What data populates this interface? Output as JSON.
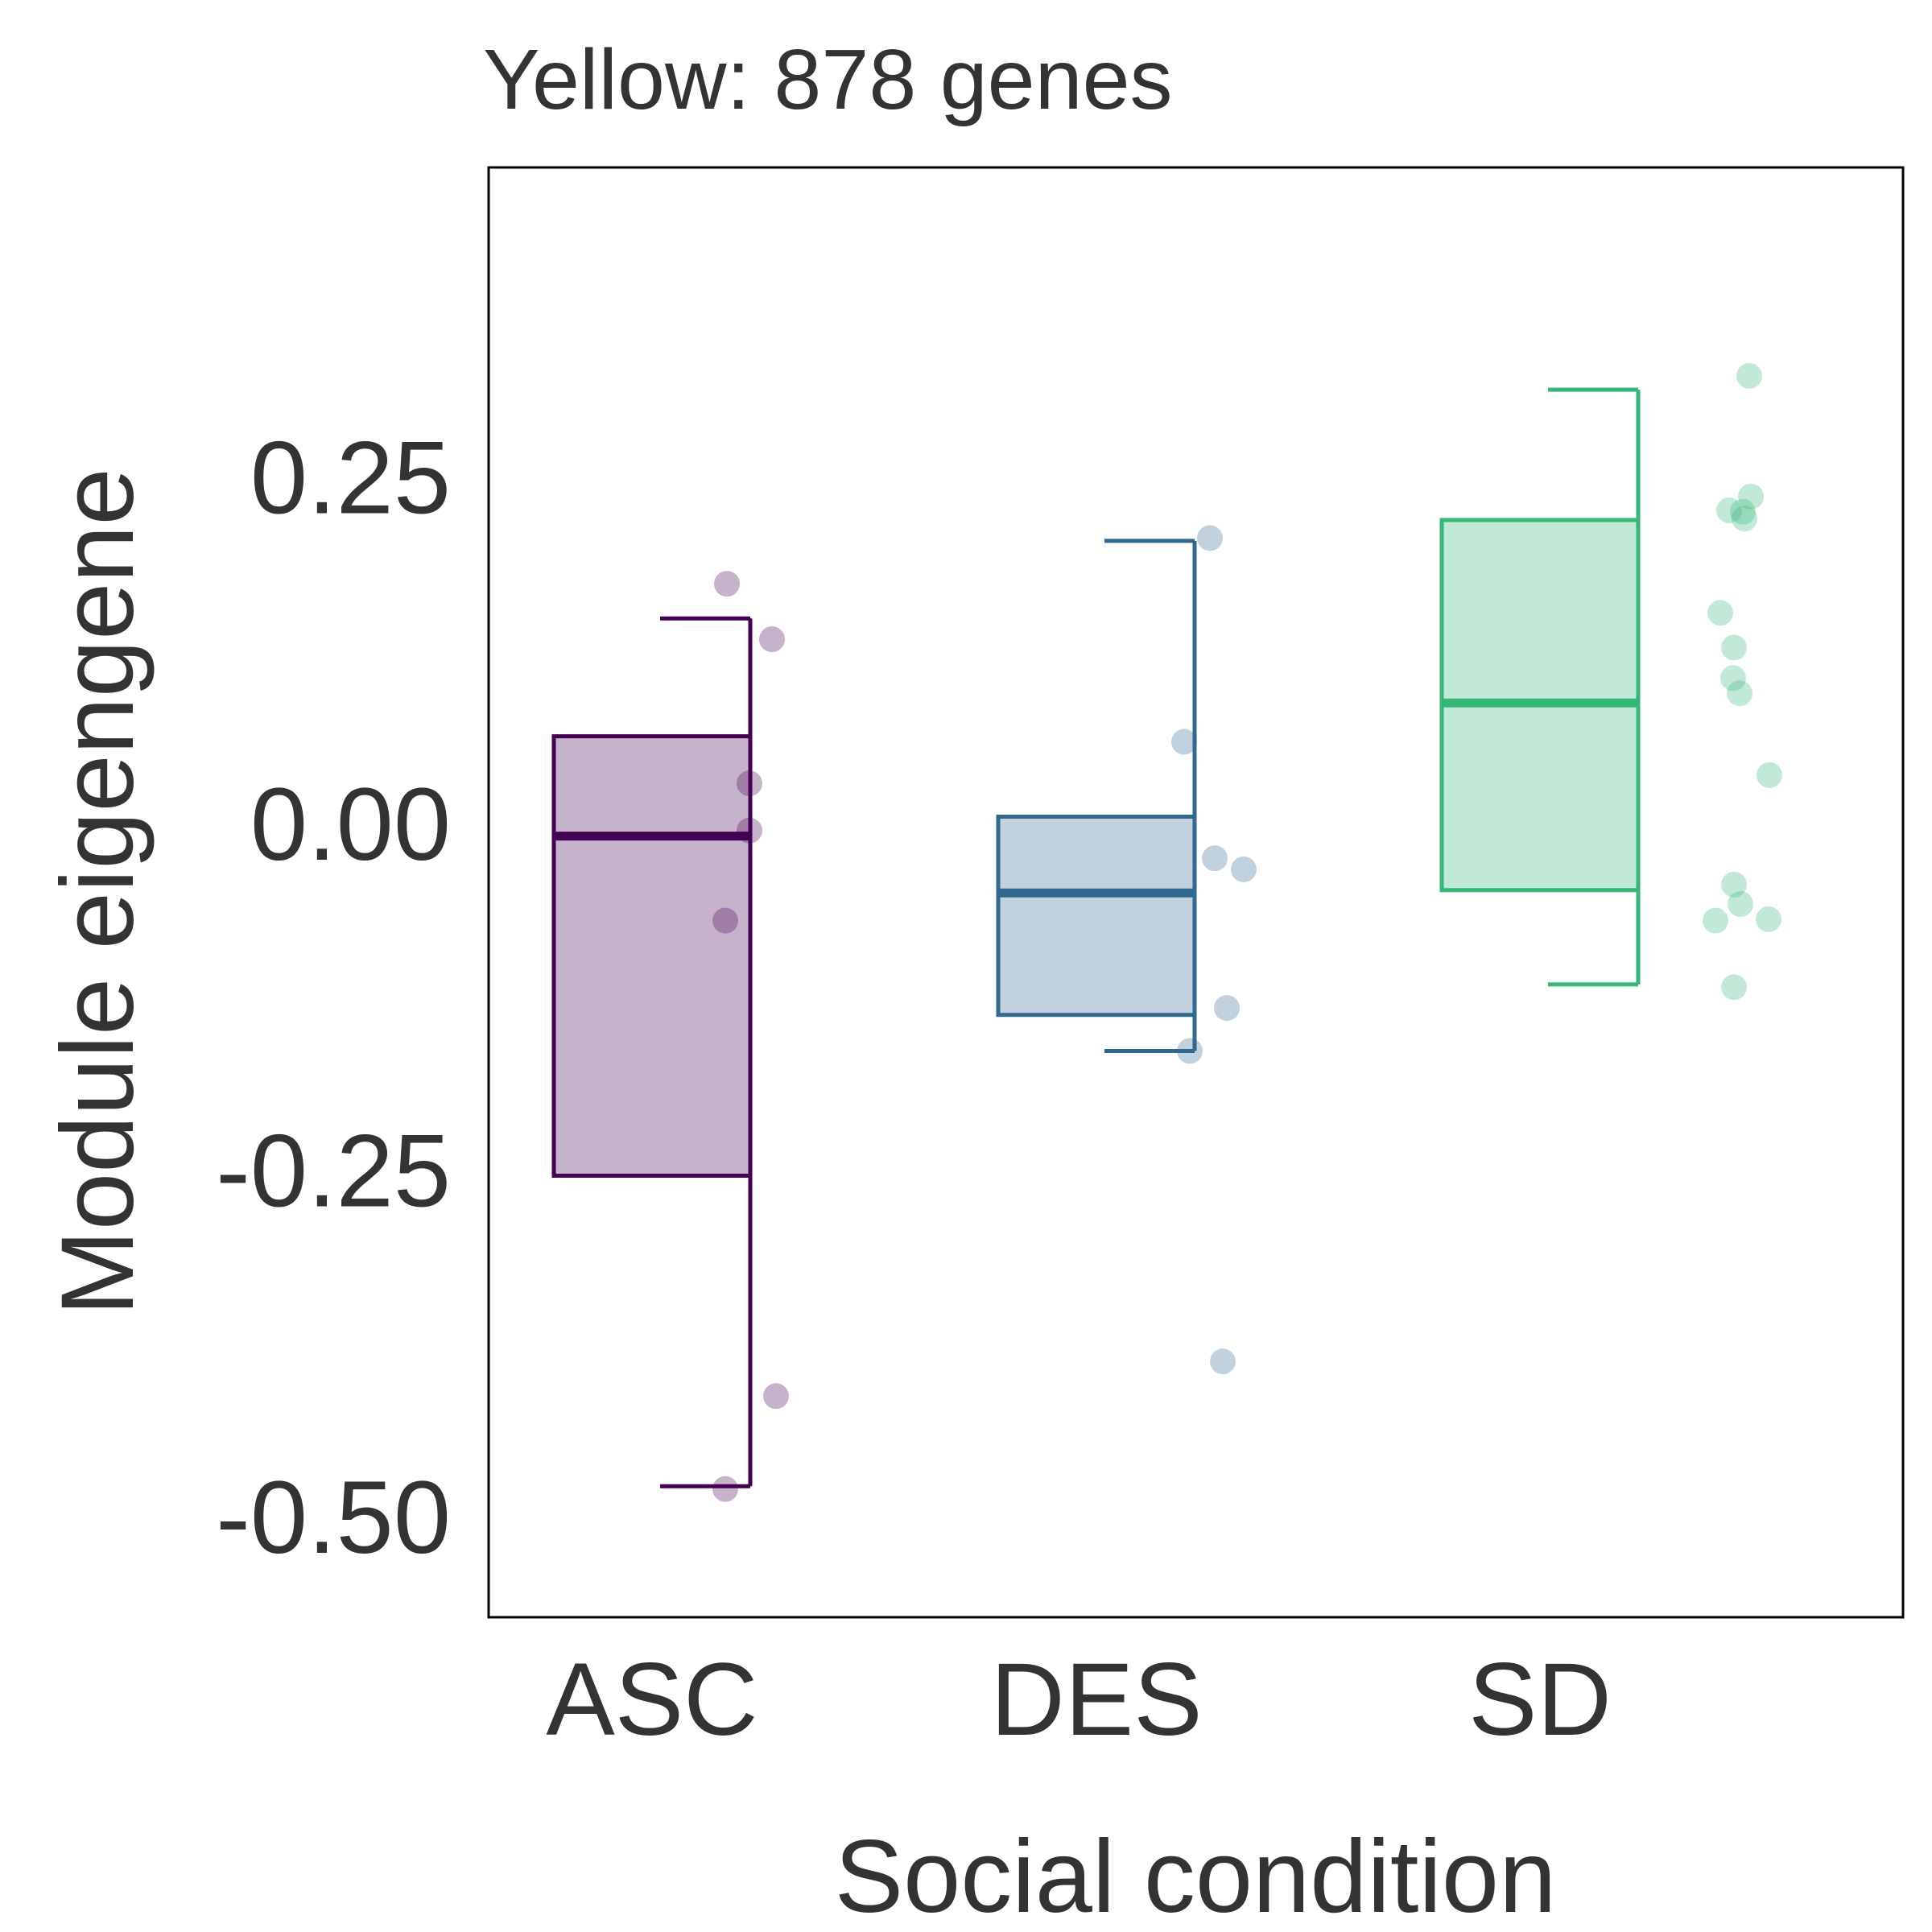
{
  "chart_data": {
    "type": "box",
    "title": "Yellow: 878 genes",
    "xlabel": "Social condition",
    "ylabel": "Module eigengene",
    "categories": [
      "ASC",
      "DES",
      "SD"
    ],
    "ylim": [
      -0.6,
      0.45
    ],
    "yticks": [
      0.25,
      0.0,
      -0.25,
      -0.5
    ],
    "ytick_labels": [
      "0.25",
      "0.00",
      "-0.25",
      "-0.50"
    ],
    "grid": false,
    "legend": "none",
    "colors": [
      "#440154",
      "#31688e",
      "#35b779"
    ],
    "boxes": [
      {
        "category": "ASC",
        "whisker_low": -0.474,
        "q1": -0.25,
        "median": -0.005,
        "q3": 0.067,
        "whisker_high": 0.152
      },
      {
        "category": "DES",
        "whisker_low": -0.16,
        "q1": -0.134,
        "median": -0.046,
        "q3": 0.009,
        "whisker_high": 0.208
      },
      {
        "category": "SD",
        "whisker_low": -0.112,
        "q1": -0.044,
        "median": 0.091,
        "q3": 0.223,
        "whisker_high": 0.317
      }
    ],
    "points": [
      {
        "category": "ASC",
        "values": [
          0.177,
          0.137,
          0.033,
          -0.001,
          -0.066,
          -0.409,
          -0.476
        ]
      },
      {
        "category": "DES",
        "values": [
          0.21,
          0.063,
          -0.021,
          -0.029,
          -0.129,
          -0.16,
          -0.384
        ]
      },
      {
        "category": "SD",
        "values": [
          0.327,
          0.24,
          0.23,
          0.229,
          0.224,
          0.156,
          0.131,
          0.109,
          0.098,
          0.039,
          -0.04,
          -0.054,
          -0.066,
          -0.065,
          -0.114
        ]
      }
    ]
  }
}
